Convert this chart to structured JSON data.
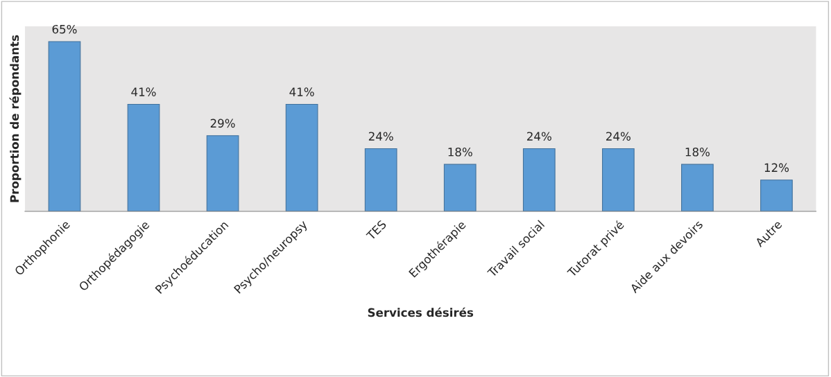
{
  "chart_data": {
    "type": "bar",
    "xlabel": "Services désirés",
    "ylabel": "Proportion de répondants",
    "categories": [
      "Orthophonie",
      "Orthopédagogie",
      "Psychoéducation",
      "Psycho/neuropsy",
      "TES",
      "Ergothérapie",
      "Travail social",
      "Tutorat privé",
      "Aide aux devoirs",
      "Autre"
    ],
    "values": [
      65,
      41,
      29,
      41,
      24,
      18,
      24,
      24,
      18,
      12
    ],
    "value_labels": [
      "65%",
      "41%",
      "29%",
      "41%",
      "24%",
      "18%",
      "24%",
      "24%",
      "18%",
      "12%"
    ],
    "color": "#5b9bd5",
    "tick_labels": "x",
    "grid": false,
    "legend": false
  }
}
